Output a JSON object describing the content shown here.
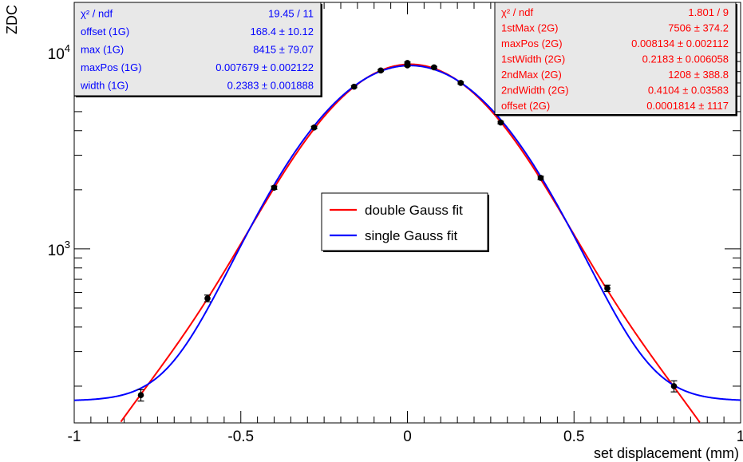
{
  "chart_data": {
    "type": "scatter",
    "xlabel": "set displacement (mm)",
    "ylabel": "ZDC",
    "xlim": [
      -1,
      1
    ],
    "ylim": [
      130,
      18000
    ],
    "log_y": true,
    "x_tick_labels": [
      "-1",
      "-0.5",
      "0",
      "0.5",
      "1"
    ],
    "y_tick_labels": [
      {
        "value": 1000,
        "base": "10",
        "exp": "3"
      },
      {
        "value": 10000,
        "base": "10",
        "exp": "4"
      }
    ],
    "data_points": {
      "color": "#000000",
      "x": [
        -0.8,
        -0.6,
        -0.4,
        -0.28,
        -0.16,
        -0.08,
        0.0,
        0.0,
        0.08,
        0.16,
        0.28,
        0.4,
        0.6,
        0.8
      ],
      "y": [
        180,
        560,
        2050,
        4150,
        6700,
        8100,
        8600,
        8850,
        8400,
        7000,
        4400,
        2300,
        630,
        200
      ],
      "err": [
        12,
        22,
        40,
        60,
        80,
        95,
        100,
        100,
        95,
        85,
        65,
        45,
        24,
        13
      ]
    },
    "series": [
      {
        "name": "double Gauss fit",
        "color": "#ff0000",
        "model": "double_gauss",
        "params": {
          "max1": 7506,
          "max2": 1208,
          "pos": 0.008134,
          "w1": 0.2183,
          "w2": 0.4104,
          "offset": 0.0001814
        }
      },
      {
        "name": "single Gauss fit",
        "color": "#0000ff",
        "model": "single_gauss",
        "params": {
          "max": 8415,
          "pos": 0.007679,
          "w": 0.2383,
          "offset": 168.4
        }
      }
    ],
    "legend_position": "center",
    "stat_boxes": [
      {
        "color": "#0000ff",
        "position": "top-left",
        "rows": [
          {
            "label": "χ² / ndf",
            "value": "19.45 / 11"
          },
          {
            "label": "offset (1G)",
            "value": "168.4 ± 10.12"
          },
          {
            "label": "max (1G)",
            "value": "8415 ± 79.07"
          },
          {
            "label": "maxPos (1G)",
            "value": "0.007679 ± 0.002122"
          },
          {
            "label": "width (1G)",
            "value": "0.2383 ± 0.001888"
          }
        ]
      },
      {
        "color": "#ff0000",
        "position": "top-right",
        "rows": [
          {
            "label": "χ² / ndf",
            "value": "1.801 / 9"
          },
          {
            "label": "1stMax (2G)",
            "value": "7506 ± 374.2"
          },
          {
            "label": "maxPos (2G)",
            "value": "0.008134 ± 0.002112"
          },
          {
            "label": "1stWidth (2G)",
            "value": "0.2183 ± 0.006058"
          },
          {
            "label": "2ndMax (2G)",
            "value": "1208 ± 388.8"
          },
          {
            "label": "2ndWidth (2G)",
            "value": "0.4104 ± 0.03583"
          },
          {
            "label": "offset (2G)",
            "value": "0.0001814 ± 1117"
          }
        ]
      }
    ]
  }
}
